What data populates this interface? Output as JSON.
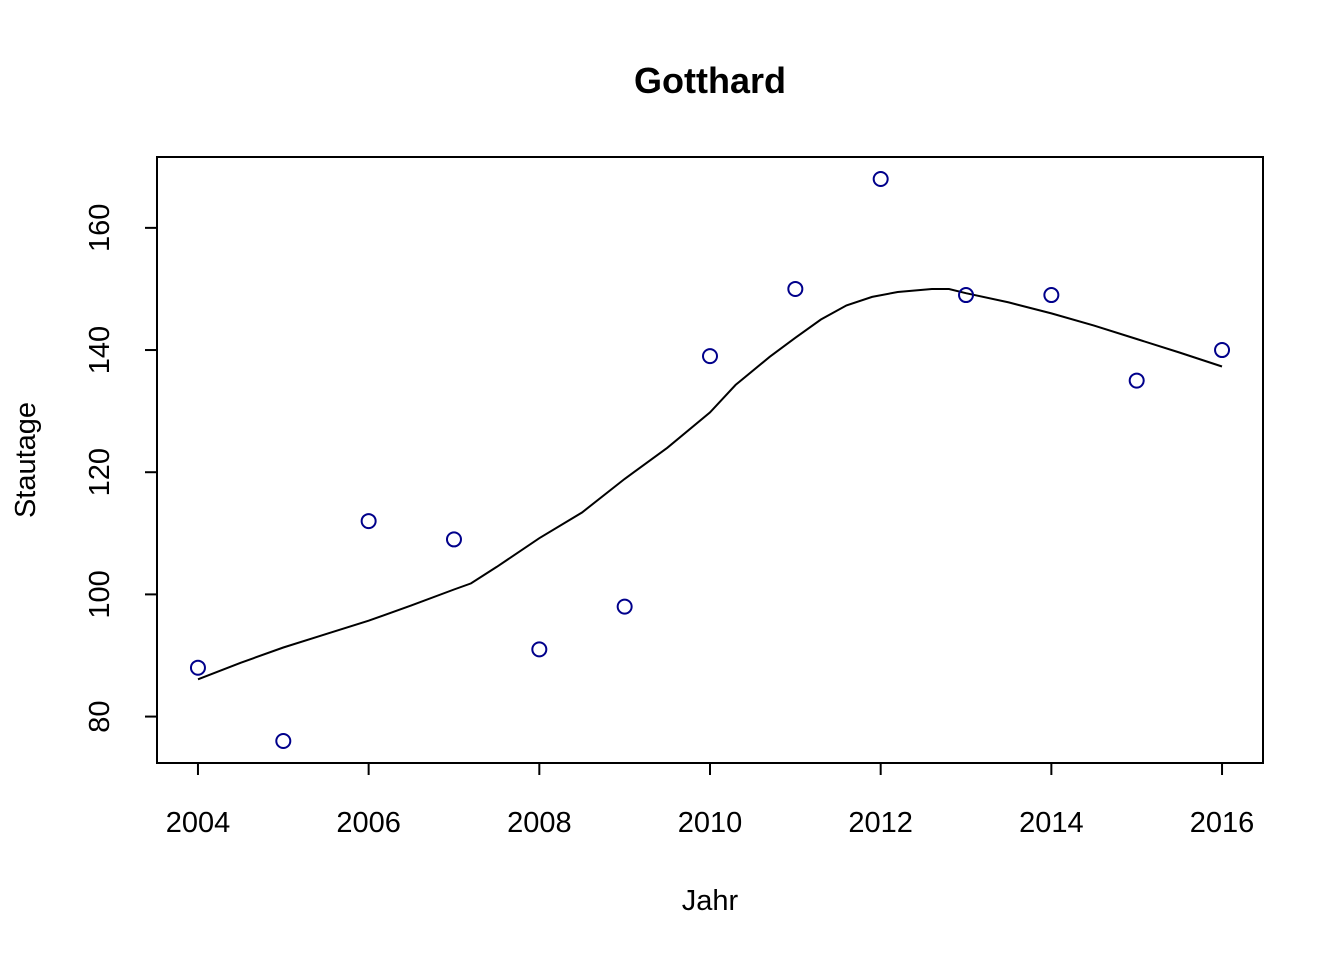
{
  "chart_data": {
    "type": "scatter",
    "title": "Gotthard",
    "xlabel": "Jahr",
    "ylabel": "Stautage",
    "xlim": [
      2003.52,
      2016.48
    ],
    "ylim": [
      72.4,
      171.6
    ],
    "x_ticks": [
      "2004",
      "2006",
      "2008",
      "2010",
      "2012",
      "2014",
      "2016"
    ],
    "y_ticks": [
      "80",
      "100",
      "120",
      "140",
      "160"
    ],
    "grid": false,
    "point_color": "#00008b",
    "line_color": "#000000",
    "series": [
      {
        "type": "scatter",
        "x": [
          2004,
          2005,
          2006,
          2007,
          2008,
          2009,
          2010,
          2011,
          2012,
          2013,
          2014,
          2015,
          2016
        ],
        "y": [
          88,
          76,
          112,
          109,
          91,
          98,
          139,
          150,
          168,
          149,
          149,
          135,
          140
        ]
      },
      {
        "type": "line",
        "x": [
          2004,
          2004.5,
          2005,
          2005.5,
          2006,
          2006.5,
          2007,
          2007.2,
          2007.5,
          2008,
          2008.5,
          2009,
          2009.5,
          2010,
          2010.3,
          2010.7,
          2011,
          2011.3,
          2011.6,
          2011.9,
          2012.2,
          2012.6,
          2012.8,
          2013,
          2013.5,
          2014,
          2014.5,
          2015,
          2015.5,
          2016
        ],
        "y": [
          86.1,
          88.8,
          91.3,
          93.5,
          95.7,
          98.2,
          100.8,
          101.8,
          104.5,
          109.2,
          113.4,
          118.9,
          124.0,
          129.8,
          134.3,
          138.9,
          142.0,
          145.0,
          147.3,
          148.7,
          149.5,
          150.0,
          150.0,
          149.3,
          147.8,
          146.0,
          144.0,
          141.8,
          139.6,
          137.3
        ]
      }
    ]
  }
}
